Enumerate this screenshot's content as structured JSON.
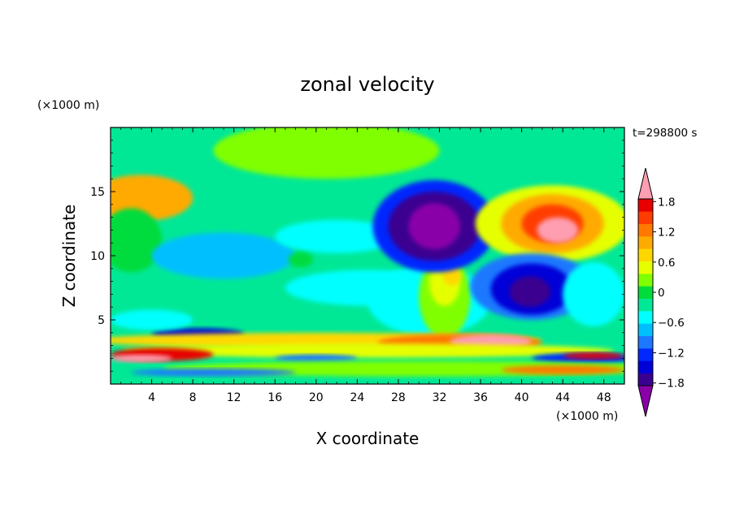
{
  "chart_data": {
    "type": "heatmap",
    "title": "zonal velocity",
    "xlabel": "X coordinate",
    "ylabel": "Z coordinate",
    "x_unit": "(×1000 m)",
    "y_unit": "(×1000 m)",
    "time_label": "t=298800 s",
    "xlim": [
      0,
      50
    ],
    "ylim": [
      0,
      20
    ],
    "x_ticks": [
      "4",
      "8",
      "12",
      "16",
      "20",
      "24",
      "28",
      "32",
      "36",
      "40",
      "44",
      "48"
    ],
    "y_ticks": [
      "5",
      "10",
      "15"
    ],
    "colorbar": {
      "range": [
        -2.1,
        2.1
      ],
      "labels": [
        "1.8",
        "1.2",
        "0.6",
        "0",
        "−0.6",
        "−1.2",
        "−1.8"
      ],
      "label_values": [
        1.8,
        1.2,
        0.6,
        0,
        -0.6,
        -1.2,
        -1.8
      ],
      "colors": [
        "#8a00a8",
        "#3a0090",
        "#0000d8",
        "#0028ff",
        "#1e78ff",
        "#00bfff",
        "#00ffff",
        "#00e896",
        "#00dc3c",
        "#80ff00",
        "#e6ff00",
        "#ffd700",
        "#ffaa00",
        "#ff7800",
        "#ff3c00",
        "#e80000",
        "#ff9eb0"
      ]
    },
    "features": [
      {
        "x": 31.5,
        "z": 12.3,
        "value": -2.0
      },
      {
        "x": 41.0,
        "z": 7.4,
        "value": -1.8
      },
      {
        "x": 43.0,
        "z": 12.3,
        "value": 2.0
      },
      {
        "x": 33.0,
        "z": 8.4,
        "value": 0.6
      },
      {
        "x": 35.0,
        "z": 3.0,
        "value": 2.0
      },
      {
        "x": 3.0,
        "z": 2.0,
        "value": 2.0
      },
      {
        "x": 8.0,
        "z": 4.0,
        "value": -1.5
      },
      {
        "x": 20.0,
        "z": 18.0,
        "value": 0.2
      }
    ]
  }
}
